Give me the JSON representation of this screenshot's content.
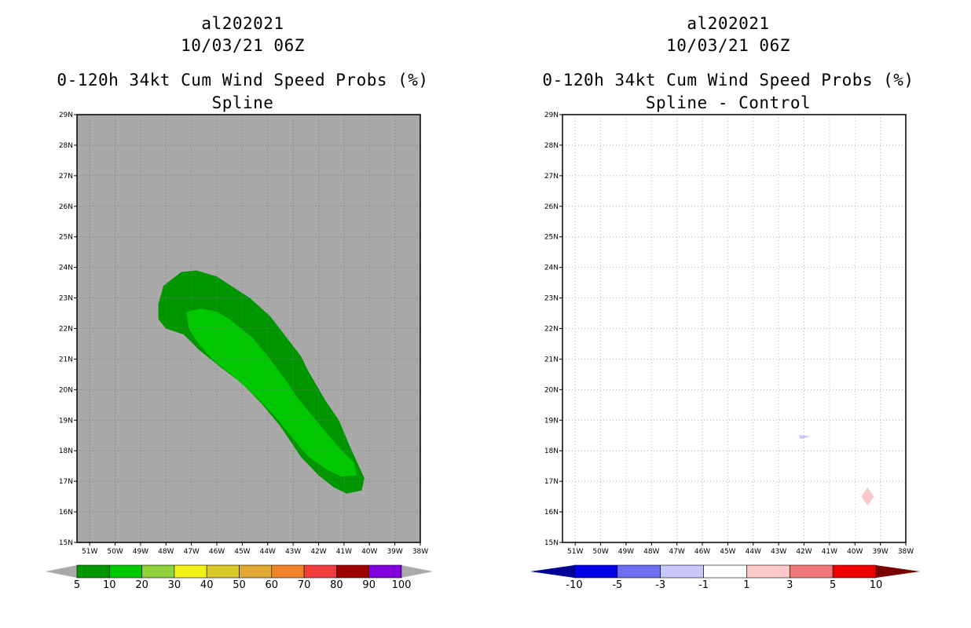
{
  "chart_data": [
    {
      "type": "heatmap",
      "title_lines": [
        "al202021",
        "10/03/21 06Z",
        "0-120h 34kt Cum Wind Speed Probs (%)",
        "Spline"
      ],
      "xlabel": "",
      "ylabel": "",
      "lon_ticks": [
        "51W",
        "50W",
        "49W",
        "48W",
        "47W",
        "46W",
        "45W",
        "44W",
        "43W",
        "42W",
        "41W",
        "40W",
        "39W",
        "38W"
      ],
      "lat_ticks": [
        "15N",
        "16N",
        "17N",
        "18N",
        "19N",
        "20N",
        "21N",
        "22N",
        "23N",
        "24N",
        "25N",
        "26N",
        "27N",
        "28N",
        "29N"
      ],
      "xlim": [
        -51.5,
        -38
      ],
      "ylim": [
        15,
        29
      ],
      "grid": true,
      "background_color": "#a9a9a9",
      "contours": [
        {
          "level": "5-10",
          "color": "#009600",
          "polygon": [
            [
              -48.3,
              22.8
            ],
            [
              -48.1,
              23.4
            ],
            [
              -47.4,
              23.85
            ],
            [
              -46.8,
              23.9
            ],
            [
              -46.0,
              23.7
            ],
            [
              -44.7,
              23.0
            ],
            [
              -43.9,
              22.4
            ],
            [
              -42.7,
              21.1
            ],
            [
              -42.4,
              20.6
            ],
            [
              -41.7,
              19.6
            ],
            [
              -41.2,
              19.0
            ],
            [
              -40.8,
              18.2
            ],
            [
              -40.2,
              17.1
            ],
            [
              -40.3,
              16.7
            ],
            [
              -40.9,
              16.6
            ],
            [
              -41.4,
              16.8
            ],
            [
              -42.0,
              17.2
            ],
            [
              -42.7,
              17.8
            ],
            [
              -43.5,
              18.8
            ],
            [
              -44.2,
              19.5
            ],
            [
              -45.0,
              20.2
            ],
            [
              -45.8,
              20.7
            ],
            [
              -46.7,
              21.3
            ],
            [
              -47.3,
              21.8
            ],
            [
              -48.0,
              22.0
            ],
            [
              -48.3,
              22.3
            ]
          ]
        },
        {
          "level": "10-20",
          "color": "#00c800",
          "polygon": [
            [
              -47.2,
              22.55
            ],
            [
              -46.6,
              22.65
            ],
            [
              -46.0,
              22.55
            ],
            [
              -45.5,
              22.3
            ],
            [
              -44.6,
              21.7
            ],
            [
              -44.0,
              21.1
            ],
            [
              -43.2,
              20.2
            ],
            [
              -42.8,
              19.7
            ],
            [
              -42.0,
              18.9
            ],
            [
              -41.3,
              18.2
            ],
            [
              -40.6,
              17.6
            ],
            [
              -40.5,
              17.2
            ],
            [
              -41.1,
              17.15
            ],
            [
              -41.7,
              17.4
            ],
            [
              -42.4,
              17.8
            ],
            [
              -43.1,
              18.5
            ],
            [
              -43.8,
              19.2
            ],
            [
              -44.5,
              19.8
            ],
            [
              -45.3,
              20.4
            ],
            [
              -46.2,
              21.0
            ],
            [
              -46.8,
              21.6
            ],
            [
              -47.1,
              22.0
            ]
          ]
        }
      ],
      "colorbar": {
        "labels": [
          "5",
          "10",
          "20",
          "30",
          "40",
          "50",
          "60",
          "70",
          "80",
          "90",
          "100"
        ],
        "colors": [
          "#009600",
          "#00c800",
          "#8fd23c",
          "#f0f014",
          "#dcc82d",
          "#e1aa32",
          "#f08228",
          "#f03c3c",
          "#a00000",
          "#8200dc"
        ],
        "under_color": "#a9a9a9",
        "over_color": "#a9a9a9"
      }
    },
    {
      "type": "heatmap",
      "title_lines": [
        "al202021",
        "10/03/21 06Z",
        "0-120h 34kt Cum Wind Speed Probs (%)",
        "Spline - Control"
      ],
      "xlabel": "",
      "ylabel": "",
      "lon_ticks": [
        "51W",
        "50W",
        "49W",
        "48W",
        "47W",
        "46W",
        "45W",
        "44W",
        "43W",
        "42W",
        "41W",
        "40W",
        "39W",
        "38W"
      ],
      "lat_ticks": [
        "15N",
        "16N",
        "17N",
        "18N",
        "19N",
        "20N",
        "21N",
        "22N",
        "23N",
        "24N",
        "25N",
        "26N",
        "27N",
        "28N",
        "29N"
      ],
      "xlim": [
        -51.5,
        -38
      ],
      "ylim": [
        15,
        29
      ],
      "grid": true,
      "background_color": "#ffffff",
      "contours": [
        {
          "level": "-3 to -1",
          "color": "#c8c8fa",
          "polygon": [
            [
              -42.2,
              18.52
            ],
            [
              -41.75,
              18.47
            ],
            [
              -42.15,
              18.38
            ]
          ]
        },
        {
          "level": "1 to 3",
          "color": "#fac8c8",
          "polygon": [
            [
              -39.5,
              16.8
            ],
            [
              -39.25,
              16.5
            ],
            [
              -39.5,
              16.2
            ],
            [
              -39.75,
              16.5
            ]
          ]
        }
      ],
      "colorbar": {
        "labels": [
          "-10",
          "-5",
          "-3",
          "-1",
          "1",
          "3",
          "5",
          "10"
        ],
        "colors": [
          "#0000e6",
          "#6e6ef0",
          "#c8c8fa",
          "#ffffff",
          "#fac8c8",
          "#f07878",
          "#f00000"
        ],
        "under_color": "#000096",
        "over_color": "#780000"
      }
    }
  ]
}
